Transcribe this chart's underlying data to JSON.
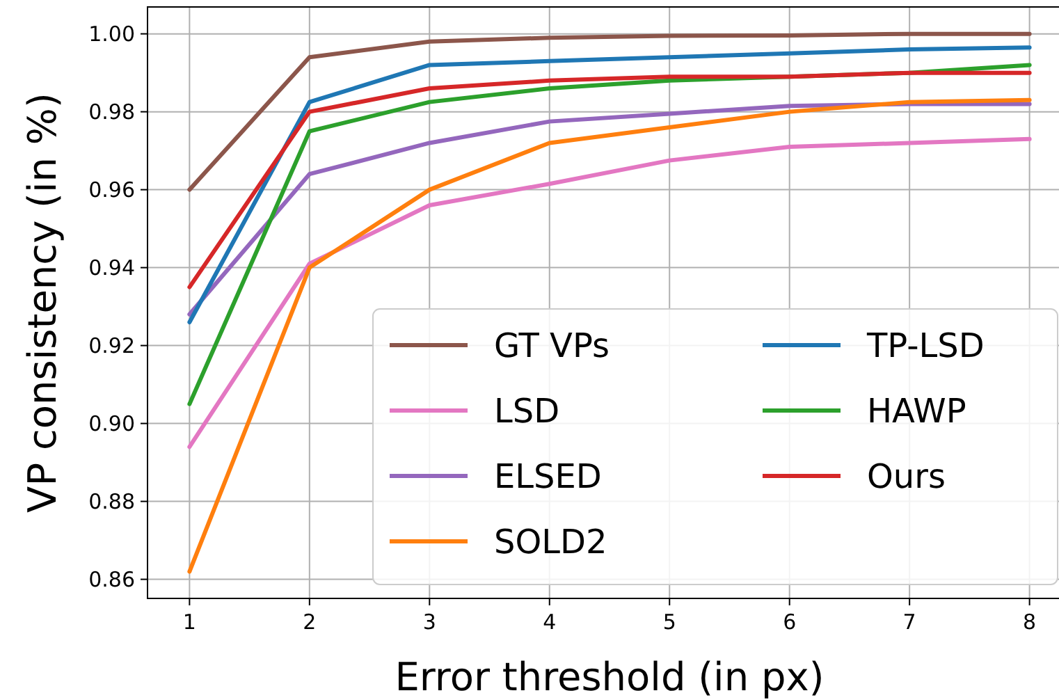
{
  "chart_data": {
    "type": "line",
    "xlabel": "Error threshold (in px)",
    "ylabel": "VP consistency (in %)",
    "x": [
      1,
      2,
      3,
      4,
      5,
      6,
      7,
      8
    ],
    "xlim": [
      0.65,
      8.35
    ],
    "xticks": [
      1,
      2,
      3,
      4,
      5,
      6,
      7,
      8
    ],
    "ylim": [
      0.8551,
      1.0069
    ],
    "yticks": [
      {
        "value": 0.86,
        "label": "0.86"
      },
      {
        "value": 0.88,
        "label": "0.88"
      },
      {
        "value": 0.9,
        "label": "0.90"
      },
      {
        "value": 0.92,
        "label": "0.92"
      },
      {
        "value": 0.94,
        "label": "0.94"
      },
      {
        "value": 0.96,
        "label": "0.96"
      },
      {
        "value": 0.98,
        "label": "0.98"
      },
      {
        "value": 1.0,
        "label": "1.00"
      }
    ],
    "grid": true,
    "legend": "bottom right",
    "marker": "none",
    "line_style": "solid",
    "series": [
      {
        "name": "GT VPs",
        "color": "#8c564b",
        "values": [
          0.96,
          0.994,
          0.998,
          0.999,
          0.9995,
          0.9996,
          1.0,
          1.0
        ]
      },
      {
        "name": "LSD",
        "color": "#e377c2",
        "values": [
          0.894,
          0.941,
          0.956,
          0.9615,
          0.9675,
          0.971,
          0.972,
          0.973
        ]
      },
      {
        "name": "ELSED",
        "color": "#9467bd",
        "values": [
          0.928,
          0.964,
          0.972,
          0.9775,
          0.9795,
          0.9815,
          0.982,
          0.982
        ]
      },
      {
        "name": "SOLD2",
        "color": "#ff7f0e",
        "values": [
          0.862,
          0.94,
          0.96,
          0.972,
          0.976,
          0.98,
          0.9825,
          0.983
        ]
      },
      {
        "name": "TP-LSD",
        "color": "#1f77b4",
        "values": [
          0.926,
          0.9825,
          0.992,
          0.993,
          0.994,
          0.995,
          0.996,
          0.9965
        ]
      },
      {
        "name": "HAWP",
        "color": "#2ca02c",
        "values": [
          0.905,
          0.975,
          0.9825,
          0.986,
          0.988,
          0.989,
          0.99,
          0.992
        ]
      },
      {
        "name": "Ours",
        "color": "#d62728",
        "values": [
          0.935,
          0.98,
          0.986,
          0.988,
          0.989,
          0.989,
          0.99,
          0.99
        ]
      }
    ]
  }
}
